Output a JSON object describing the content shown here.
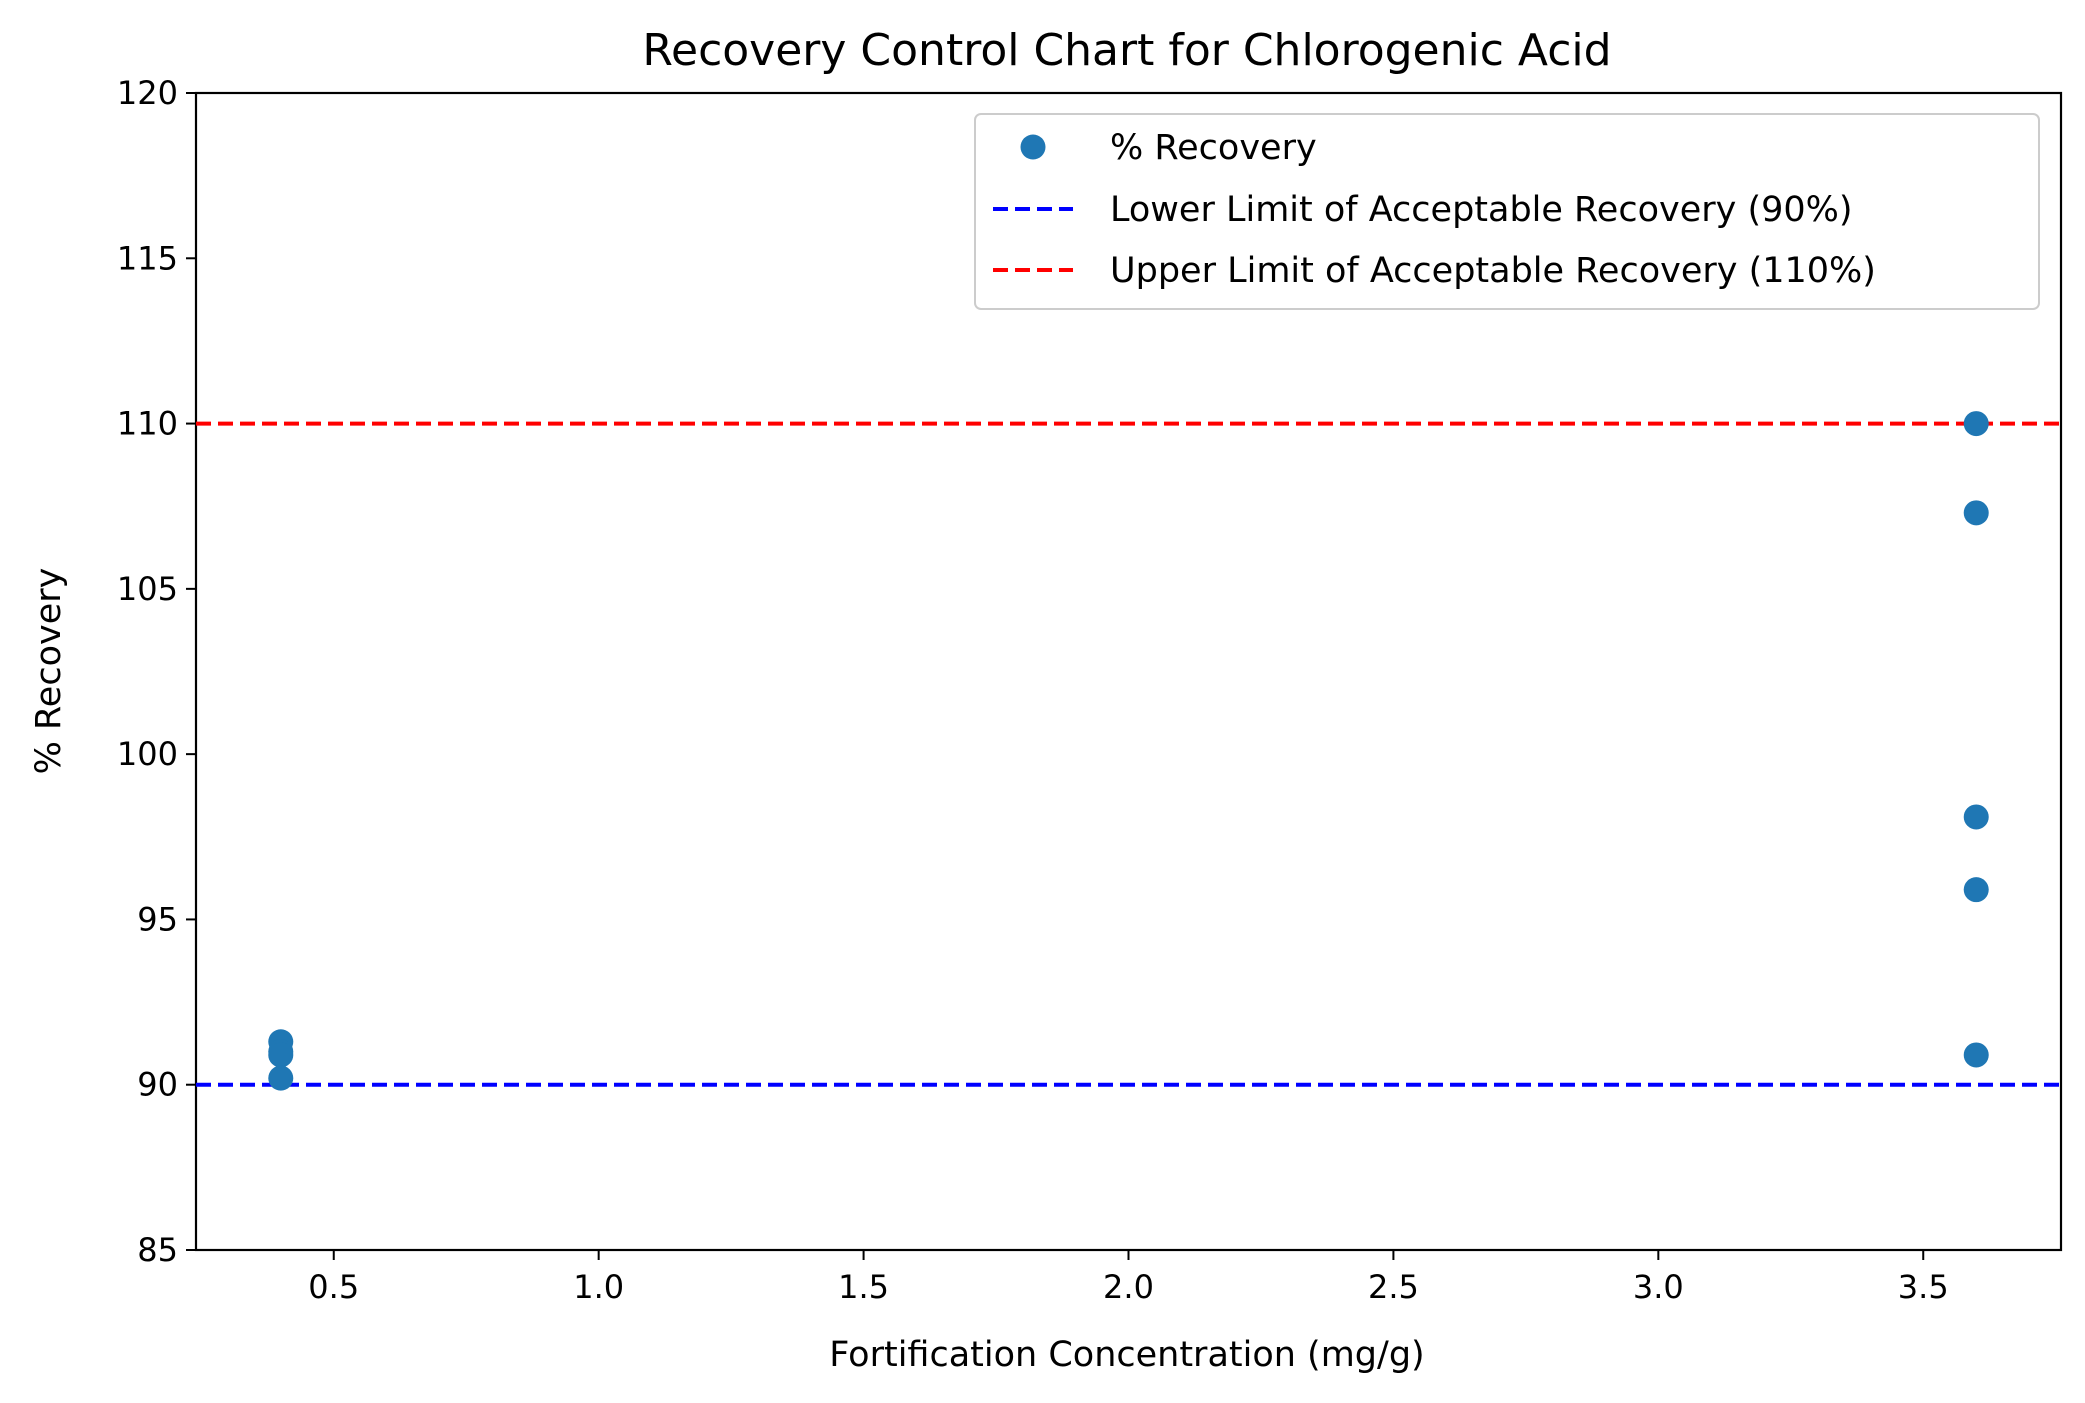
{
  "chart_data": {
    "type": "scatter",
    "title": "Recovery Control Chart for Chlorogenic Acid",
    "xlabel": "Fortification Concentration (mg/g)",
    "ylabel": "% Recovery",
    "xlim": [
      0.24,
      3.76
    ],
    "ylim": [
      85,
      120
    ],
    "xticks": [
      "0.5",
      "1.0",
      "1.5",
      "2.0",
      "2.5",
      "3.0",
      "3.5"
    ],
    "yticks": [
      "85",
      "90",
      "95",
      "100",
      "105",
      "110",
      "115",
      "120"
    ],
    "grid": false,
    "legend_position": "top-right",
    "series": [
      {
        "name": "% Recovery",
        "kind": "points",
        "color": "#1f77b4",
        "points": [
          {
            "x": 0.4,
            "y": 91.3
          },
          {
            "x": 0.4,
            "y": 91.0
          },
          {
            "x": 0.4,
            "y": 90.9
          },
          {
            "x": 0.4,
            "y": 90.2
          },
          {
            "x": 3.6,
            "y": 110.0
          },
          {
            "x": 3.6,
            "y": 107.3
          },
          {
            "x": 3.6,
            "y": 98.1
          },
          {
            "x": 3.6,
            "y": 95.9
          },
          {
            "x": 3.6,
            "y": 90.9
          }
        ]
      },
      {
        "name": "Lower Limit of Acceptable Recovery (90%)",
        "kind": "hline",
        "value": 90,
        "color": "#0000ff",
        "style": "dashed"
      },
      {
        "name": "Upper Limit of Acceptable Recovery (110%)",
        "kind": "hline",
        "value": 110,
        "color": "#ff0000",
        "style": "dashed"
      }
    ]
  }
}
